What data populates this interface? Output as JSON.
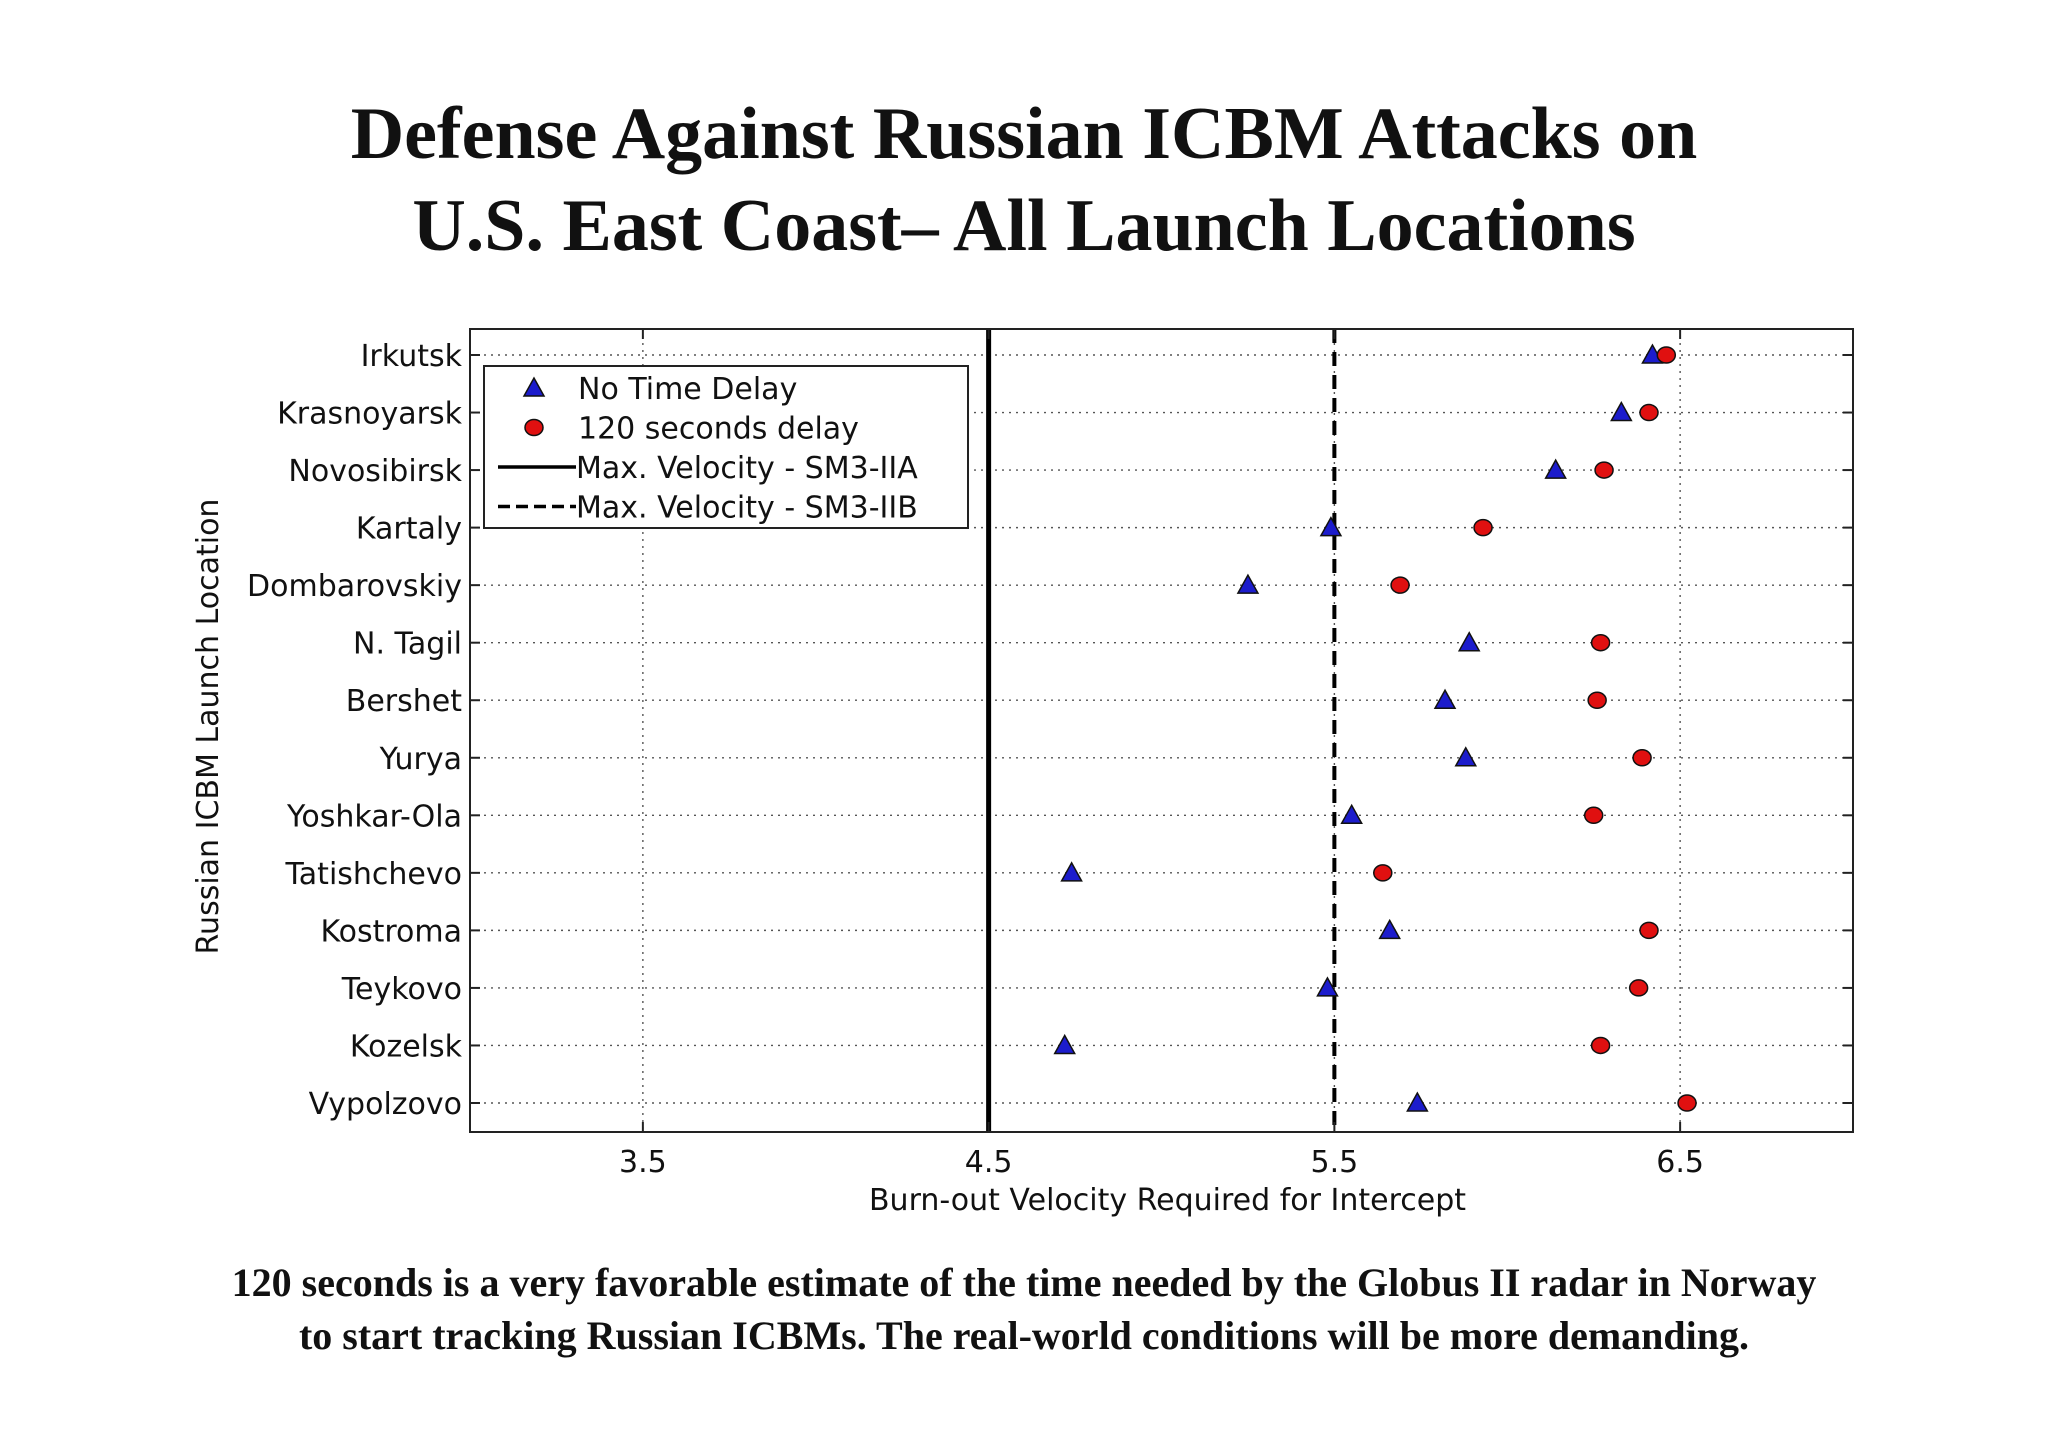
{
  "title": {
    "line1": "Defense Against Russian ICBM Attacks on",
    "line2": "U.S. East Coast– All Launch Locations"
  },
  "caption": {
    "line1": "120 seconds is a very favorable estimate of the time needed by the Globus II radar in Norway",
    "line2": "to start tracking Russian ICBMs.  The real-world conditions will be more demanding."
  },
  "chart_data": {
    "type": "scatter",
    "xlabel": "Burn-out Velocity Required for Intercept",
    "ylabel": "Russian ICBM Launch Location",
    "xlim": [
      3.0,
      7.0
    ],
    "xticks": [
      "3.5",
      "4.5",
      "5.5",
      "6.5"
    ],
    "categories": [
      "Irkutsk",
      "Krasnoyarsk",
      "Novosibirsk",
      "Kartaly",
      "Dombarovskiy",
      "N. Tagil",
      "Bershet",
      "Yurya",
      "Yoshkar-Ola",
      "Tatishchevo",
      "Kostroma",
      "Teykovo",
      "Kozelsk",
      "Vypolzovo"
    ],
    "series": [
      {
        "name": "No Time Delay",
        "marker": "triangle",
        "color": "#1c1ccc",
        "values": [
          6.42,
          6.33,
          6.14,
          5.49,
          5.25,
          5.89,
          5.82,
          5.88,
          5.55,
          4.74,
          5.66,
          5.48,
          4.72,
          5.74
        ]
      },
      {
        "name": "120 seconds delay",
        "marker": "circle",
        "color": "#e01010",
        "values": [
          6.46,
          6.41,
          6.28,
          5.93,
          5.69,
          6.27,
          6.26,
          6.39,
          6.25,
          5.64,
          6.41,
          6.38,
          6.27,
          6.52
        ]
      }
    ],
    "vlines": [
      {
        "name": "Max. Velocity - SM3-IIA",
        "x": 4.5,
        "style": "solid"
      },
      {
        "name": "Max. Velocity - SM3-IIB",
        "x": 5.5,
        "style": "dashed"
      }
    ],
    "grid": true,
    "legend_position": "top-left"
  }
}
